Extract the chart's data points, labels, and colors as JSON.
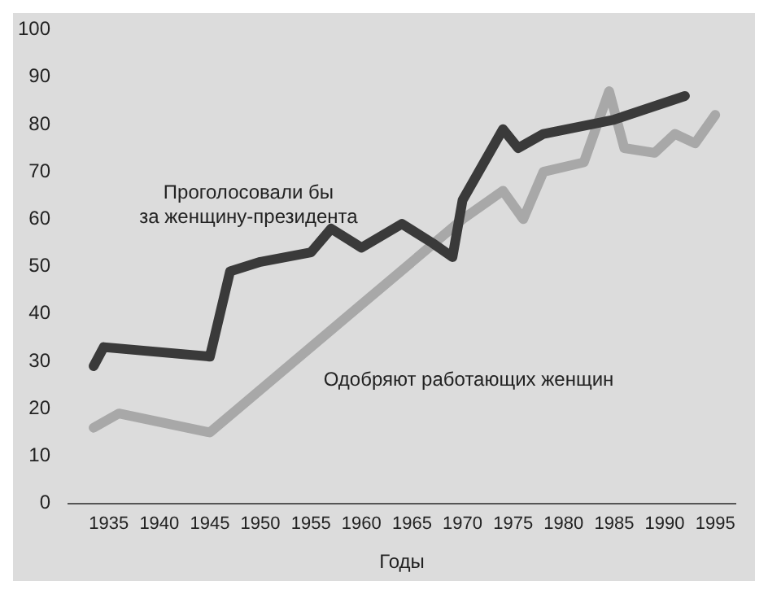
{
  "chart_data": {
    "type": "line",
    "xlabel": "Годы",
    "xlim": [
      1931,
      1997
    ],
    "xticks": [
      1935,
      1940,
      1945,
      1950,
      1955,
      1960,
      1965,
      1970,
      1975,
      1980,
      1985,
      1990,
      1995
    ],
    "ylim": [
      0,
      100
    ],
    "yticks": [
      0,
      10,
      20,
      30,
      40,
      50,
      60,
      70,
      80,
      90,
      100
    ],
    "grid": false,
    "legend": false,
    "marker": "none",
    "line_style": "solid",
    "series": [
      {
        "name": "Проголосовали бы\nза женщину-президента",
        "color": "#3a3a3a",
        "x": [
          1933.5,
          1934.5,
          1945,
          1947,
          1950,
          1955,
          1957,
          1960,
          1964,
          1967,
          1969,
          1970,
          1974,
          1975.5,
          1978,
          1985,
          1992
        ],
        "values": [
          29,
          33,
          31,
          49,
          51,
          53,
          58,
          54,
          59,
          55,
          52,
          64,
          79,
          75,
          78,
          81,
          86
        ]
      },
      {
        "name": "Одобряют работающих женщин",
        "color": "#a8a8a8",
        "x": [
          1933.5,
          1936,
          1945,
          1960,
          1970,
          1972,
          1974,
          1976,
          1978,
          1982,
          1984.5,
          1986,
          1989,
          1991,
          1993,
          1995
        ],
        "values": [
          16,
          19,
          15,
          42,
          60,
          63,
          66,
          60,
          70,
          72,
          87,
          75,
          74,
          78,
          76,
          82
        ]
      }
    ]
  }
}
